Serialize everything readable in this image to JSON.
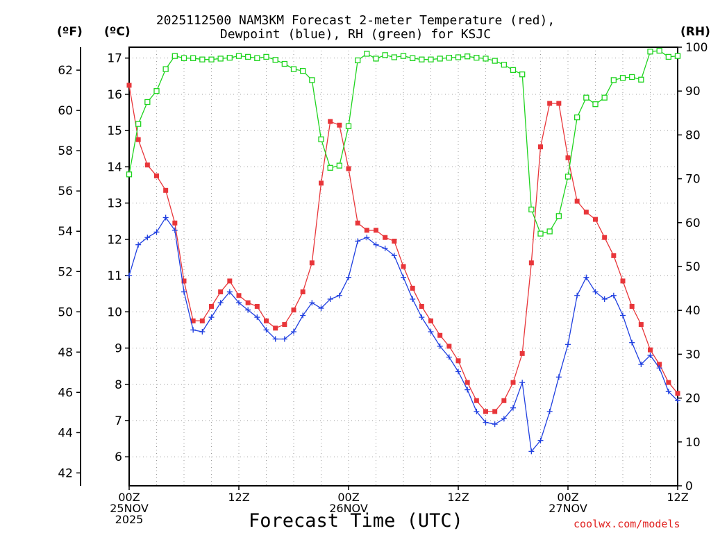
{
  "chart_data": {
    "type": "line",
    "title_line1": "2025112500 NAM3KM Forecast 2-meter Temperature (red),",
    "title_line2": "Dewpoint (blue), RH (green) for KSJC",
    "unit_f": "(ºF)",
    "unit_c": "(ºC)",
    "unit_rh": "(RH)",
    "xlabel": "Forecast Time (UTC)",
    "credit": "coolwx.com/models",
    "x_range_hours": [
      0,
      60
    ],
    "y_celsius_range": [
      5.2,
      17.3
    ],
    "rh_range": [
      0,
      100
    ],
    "left_f_ticks": [
      "42",
      "44",
      "46",
      "48",
      "50",
      "52",
      "54",
      "56",
      "58",
      "60",
      "62"
    ],
    "left_c_ticks": [
      "6",
      "7",
      "8",
      "9",
      "10",
      "11",
      "12",
      "13",
      "14",
      "15",
      "16",
      "17"
    ],
    "right_rh_ticks": [
      "0",
      "10",
      "20",
      "30",
      "40",
      "50",
      "60",
      "70",
      "80",
      "90",
      "100"
    ],
    "x_ticks": [
      {
        "hour": 0,
        "lines": [
          "00Z",
          "25NOV",
          "2025"
        ]
      },
      {
        "hour": 12,
        "lines": [
          "12Z"
        ]
      },
      {
        "hour": 24,
        "lines": [
          "00Z",
          "26NOV"
        ]
      },
      {
        "hour": 36,
        "lines": [
          "12Z"
        ]
      },
      {
        "hour": 48,
        "lines": [
          "00Z",
          "27NOV"
        ]
      },
      {
        "hour": 60,
        "lines": [
          "12Z"
        ]
      }
    ],
    "series": [
      {
        "name": "Temperature",
        "units": "C",
        "color": "#e8363a",
        "marker": "filled-square",
        "values": [
          16.25,
          14.75,
          14.05,
          13.75,
          13.35,
          12.45,
          10.85,
          9.75,
          9.75,
          10.15,
          10.55,
          10.85,
          10.45,
          10.25,
          10.15,
          9.75,
          9.55,
          9.65,
          10.05,
          10.55,
          11.35,
          13.55,
          15.25,
          15.15,
          13.95,
          12.45,
          12.25,
          12.25,
          12.05,
          11.95,
          11.25,
          10.65,
          10.15,
          9.75,
          9.35,
          9.05,
          8.65,
          8.05,
          7.55,
          7.25,
          7.25,
          7.55,
          8.05,
          8.85,
          11.35,
          14.55,
          15.75,
          15.75,
          14.25,
          13.05,
          12.75,
          12.55,
          12.05,
          11.55,
          10.85,
          10.15,
          9.65,
          8.95,
          8.55,
          8.05,
          7.75
        ]
      },
      {
        "name": "Dewpoint",
        "units": "C",
        "color": "#1f3fe0",
        "marker": "plus",
        "values": [
          11.0,
          11.85,
          12.05,
          12.2,
          12.6,
          12.25,
          10.55,
          9.5,
          9.45,
          9.85,
          10.25,
          10.55,
          10.25,
          10.05,
          9.85,
          9.5,
          9.25,
          9.25,
          9.45,
          9.9,
          10.25,
          10.1,
          10.35,
          10.45,
          10.95,
          11.95,
          12.05,
          11.85,
          11.75,
          11.55,
          10.95,
          10.35,
          9.85,
          9.45,
          9.05,
          8.75,
          8.35,
          7.85,
          7.25,
          6.95,
          6.9,
          7.05,
          7.35,
          8.05,
          6.15,
          6.45,
          7.25,
          8.2,
          9.1,
          10.45,
          10.95,
          10.55,
          10.35,
          10.45,
          9.9,
          9.15,
          8.55,
          8.8,
          8.45,
          7.8,
          7.55
        ]
      },
      {
        "name": "RH",
        "units": "%",
        "color": "#1ed41e",
        "marker": "open-square",
        "values": [
          71,
          82.5,
          87.5,
          90,
          95,
          98,
          97.5,
          97.5,
          97.2,
          97.2,
          97.4,
          97.6,
          98,
          97.8,
          97.5,
          97.8,
          97.1,
          96.2,
          95,
          94.6,
          92.5,
          79,
          72.5,
          73,
          82,
          97,
          98.5,
          97.4,
          98.2,
          97.7,
          98,
          97.5,
          97.2,
          97.2,
          97.4,
          97.6,
          97.7,
          97.9,
          97.6,
          97.4,
          96.9,
          96,
          94.8,
          93.8,
          63,
          57.5,
          58,
          61.5,
          70.5,
          84,
          88.5,
          87,
          88.5,
          92.5,
          93,
          93.2,
          92.6,
          99,
          99.2,
          97.8,
          98
        ]
      }
    ]
  }
}
